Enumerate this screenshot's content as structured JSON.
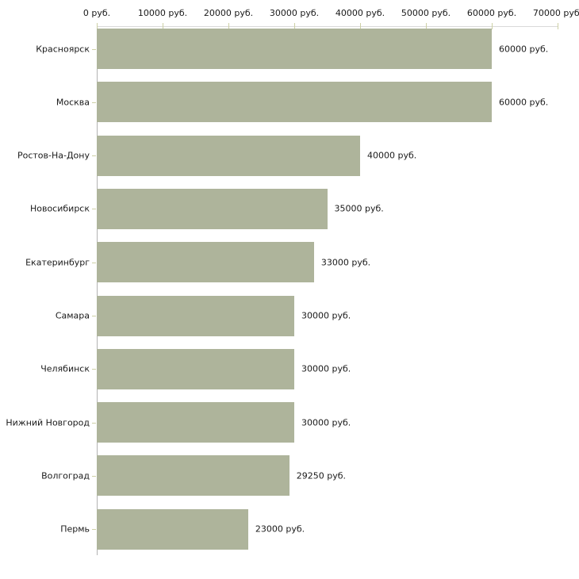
{
  "chart_data": {
    "type": "bar",
    "orientation": "horizontal",
    "title": "",
    "xlabel": "",
    "ylabel": "",
    "unit": "руб.",
    "xlim": [
      0,
      70000
    ],
    "grid": false,
    "axis_position": "top",
    "categories": [
      "Красноярск",
      "Москва",
      "Ростов-На-Дону",
      "Новосибирск",
      "Екатеринбург",
      "Самара",
      "Челябинск",
      "Нижний Новгород",
      "Волгоград",
      "Пермь"
    ],
    "values": [
      60000,
      60000,
      40000,
      35000,
      33000,
      30000,
      30000,
      30000,
      29250,
      23000
    ],
    "value_labels": [
      "60000 руб.",
      "60000 руб.",
      "40000 руб.",
      "35000 руб.",
      "33000 руб.",
      "30000 руб.",
      "30000 руб.",
      "30000 руб.",
      "29250 руб.",
      "23000 руб."
    ],
    "x_ticks": [
      0,
      10000,
      20000,
      30000,
      40000,
      50000,
      60000,
      70000
    ],
    "x_tick_labels": [
      "0 руб.",
      "10000 руб.",
      "20000 руб.",
      "30000 руб.",
      "40000 руб.",
      "50000 руб.",
      "60000 руб.",
      "70000 руб."
    ],
    "colors": {
      "bar_fill": "#aeb49b",
      "axis_line_vertical": "#b3b3b3",
      "axis_line_horizontal": "#d9d9d9",
      "tick_mark": "#cdd0a5",
      "text": "#1a1a1a",
      "background": "#ffffff"
    }
  }
}
